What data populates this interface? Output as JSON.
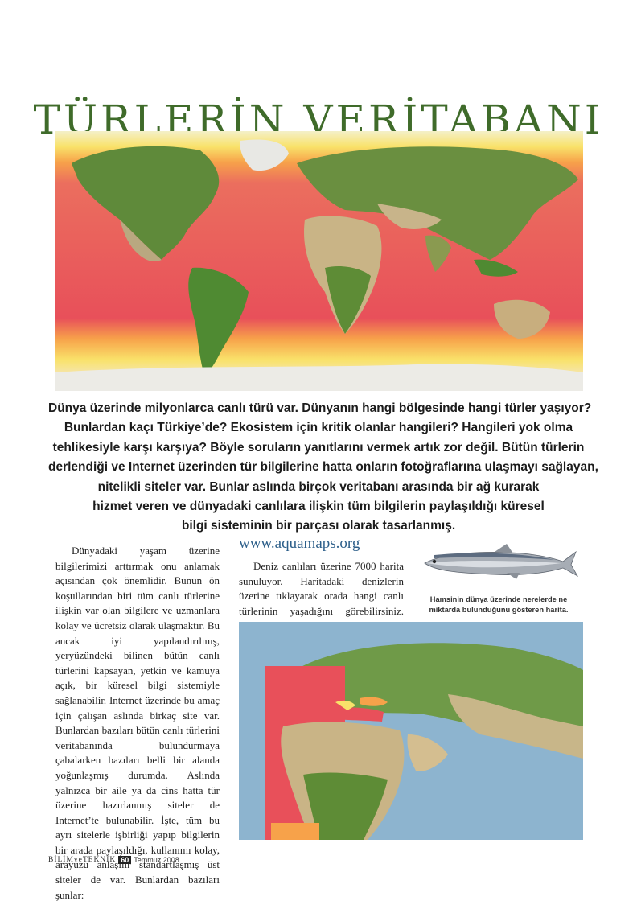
{
  "title": "TÜRLERİN VERİTABANI",
  "lead_lines": [
    "Dünya üzerinde milyonlarca canlı türü var. Dünyanın hangi bölgesinde hangi türler yaşıyor?",
    "Bunlardan kaçı Türkiye’de? Ekosistem için kritik olanlar hangileri? Hangileri yok olma",
    "tehlikesiyle karşı karşıya? Böyle soruların yanıtlarını vermek artık zor değil. Bütün türlerin",
    "derlendiği ve Internet üzerinden tür bilgilerine hatta onların fotoğraflarına ulaşmayı sağlayan,",
    "nitelikli siteler var. Bunlar aslında birçok veritabanı arasında bir ağ kurarak",
    "hizmet veren ve dünyadaki canlılara ilişkin tüm bilgilerin paylaşıldığı küresel",
    "bilgi sisteminin bir parçası olarak tasarlanmış."
  ],
  "column1": "Dünyadaki yaşam üzerine bilgilerimizi arttırmak onu anlamak açısından çok önemlidir. Bunun ön koşullarından biri tüm canlı türlerine ilişkin var olan bilgilere ve uzmanlara kolay ve ücretsiz olarak ulaşmaktır. Bu ancak iyi yapılandırılmış, yeryüzündeki bilinen bütün canlı türlerini kapsayan, yetkin ve kamuya açık, bir küresel bilgi sistemiyle sağlanabilir. Internet üzerinde bu amaç için çalışan aslında birkaç site var. Bunlardan bazıları bütün canlı türlerini veritabanında bulundurmaya çabalarken bazıları belli bir alanda yoğunlaşmış durumda. Aslında yalnızca bir aile ya da cins hatta tür üzerine hazırlanmış siteler de Internet’te bulunabilir. İşte, tüm bu ayrı sitelerle işbirliği yapıp bilgilerin bir arada paylaşıldığı, kullanımı kolay, arayüzü anlaşılır standartlaşmış üst siteler de var. Bunlardan bazıları şunlar:",
  "section_url": "www.aquamaps.org",
  "column2": "Deniz canlıları üzerine 7000 harita sunuluyor. Haritadaki denizlerin üzerine tıklayarak orada hangi canlı türlerinin yaşadığını görebilirsiniz. Karadaki",
  "caption": "Hamsinin dünya üzerinde nerelerde ne miktarda bulunduğunu gösteren harita.",
  "footer": {
    "brand": "BİLİMveTEKNİK",
    "page": "60",
    "date": "Temmuz 2008"
  },
  "colors": {
    "title": "#3f6b2a",
    "url": "#2d5f8a",
    "map_red": "#e8505a",
    "map_orange": "#f7a24a",
    "map_yellow": "#f9e26a"
  },
  "images": {
    "world_map": "world-species-distribution-map",
    "fish": "anchovy-illustration",
    "regional_map": "anchovy-distribution-map"
  }
}
